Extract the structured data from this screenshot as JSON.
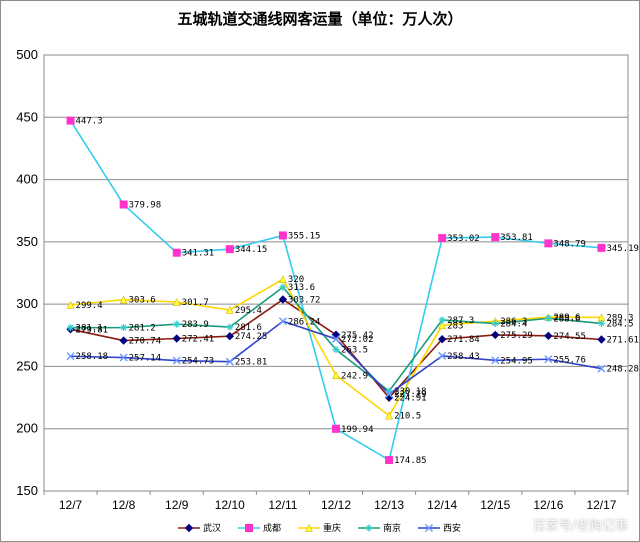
{
  "chart_data": {
    "type": "line",
    "title": "五城轨道交通线网客运量（单位：万人次）",
    "categories": [
      "12/7",
      "12/8",
      "12/9",
      "12/10",
      "12/11",
      "12/12",
      "12/13",
      "12/14",
      "12/15",
      "12/16",
      "12/17"
    ],
    "ylim": [
      150,
      500
    ],
    "yticks": [
      150,
      200,
      250,
      300,
      350,
      400,
      450,
      500
    ],
    "grid": true,
    "legend_position": "bottom",
    "series": [
      {
        "name": "武汉",
        "color": "#8b1a0e",
        "marker": "diamond",
        "marker_color": "#000080",
        "values": [
          279.81,
          270.74,
          272.41,
          274.25,
          303.72,
          275.42,
          224.91,
          271.84,
          275.29,
          274.55,
          271.61
        ],
        "labels": [
          "279.81",
          "270.74",
          "272.41",
          "274.25",
          "303.72",
          "275.42",
          "224.91",
          "271.84",
          "275.29",
          "274.55",
          "271.61"
        ]
      },
      {
        "name": "成都",
        "color": "#33ccee",
        "marker": "square",
        "marker_color": "#ff33cc",
        "values": [
          447.3,
          379.98,
          341.31,
          344.15,
          355.15,
          199.94,
          174.85,
          353.02,
          353.81,
          348.79,
          345.19
        ],
        "labels": [
          "447.3",
          "379.98",
          "341.31",
          "344.15",
          "355.15",
          "199.94",
          "174.85",
          "353.02",
          "353.81",
          "348.79",
          "345.19"
        ]
      },
      {
        "name": "重庆",
        "color": "#ffd700",
        "marker": "triangle",
        "marker_color": "#ffff33",
        "values": [
          299.4,
          303.6,
          301.7,
          295.4,
          320,
          242.9,
          210.5,
          283,
          286.3,
          289.6,
          289.3
        ],
        "labels": [
          "299.4",
          "303.6",
          "301.7",
          "295.4",
          "320",
          "242.9",
          "210.5",
          "283",
          "286.3",
          "289.6",
          "289.3"
        ]
      },
      {
        "name": "南京",
        "color": "#1a9c7c",
        "marker": "star",
        "marker_color": "#33cccc",
        "values": [
          281.1,
          281.2,
          283.9,
          281.6,
          313.6,
          263.5,
          230.18,
          287.3,
          284.4,
          288.6,
          284.5
        ],
        "labels": [
          "281.1",
          "281.2",
          "283.9",
          "281.6",
          "313.6",
          "263.5",
          "230.18",
          "287.3",
          "284.4",
          "288.6",
          "284.5"
        ]
      },
      {
        "name": "西安",
        "color": "#3344cc",
        "marker": "x",
        "marker_color": "#6699ff",
        "values": [
          258.18,
          257.14,
          254.73,
          253.81,
          286.24,
          272.02,
          227.79,
          258.43,
          254.95,
          255.76,
          248.28
        ],
        "labels": [
          "258.18",
          "257.14",
          "254.73",
          "253.81",
          "286.24",
          "272.02",
          "227.79",
          "258.43",
          "254.95",
          "255.76",
          "248.28"
        ]
      }
    ]
  },
  "watermark": "百家号/老狗记事"
}
